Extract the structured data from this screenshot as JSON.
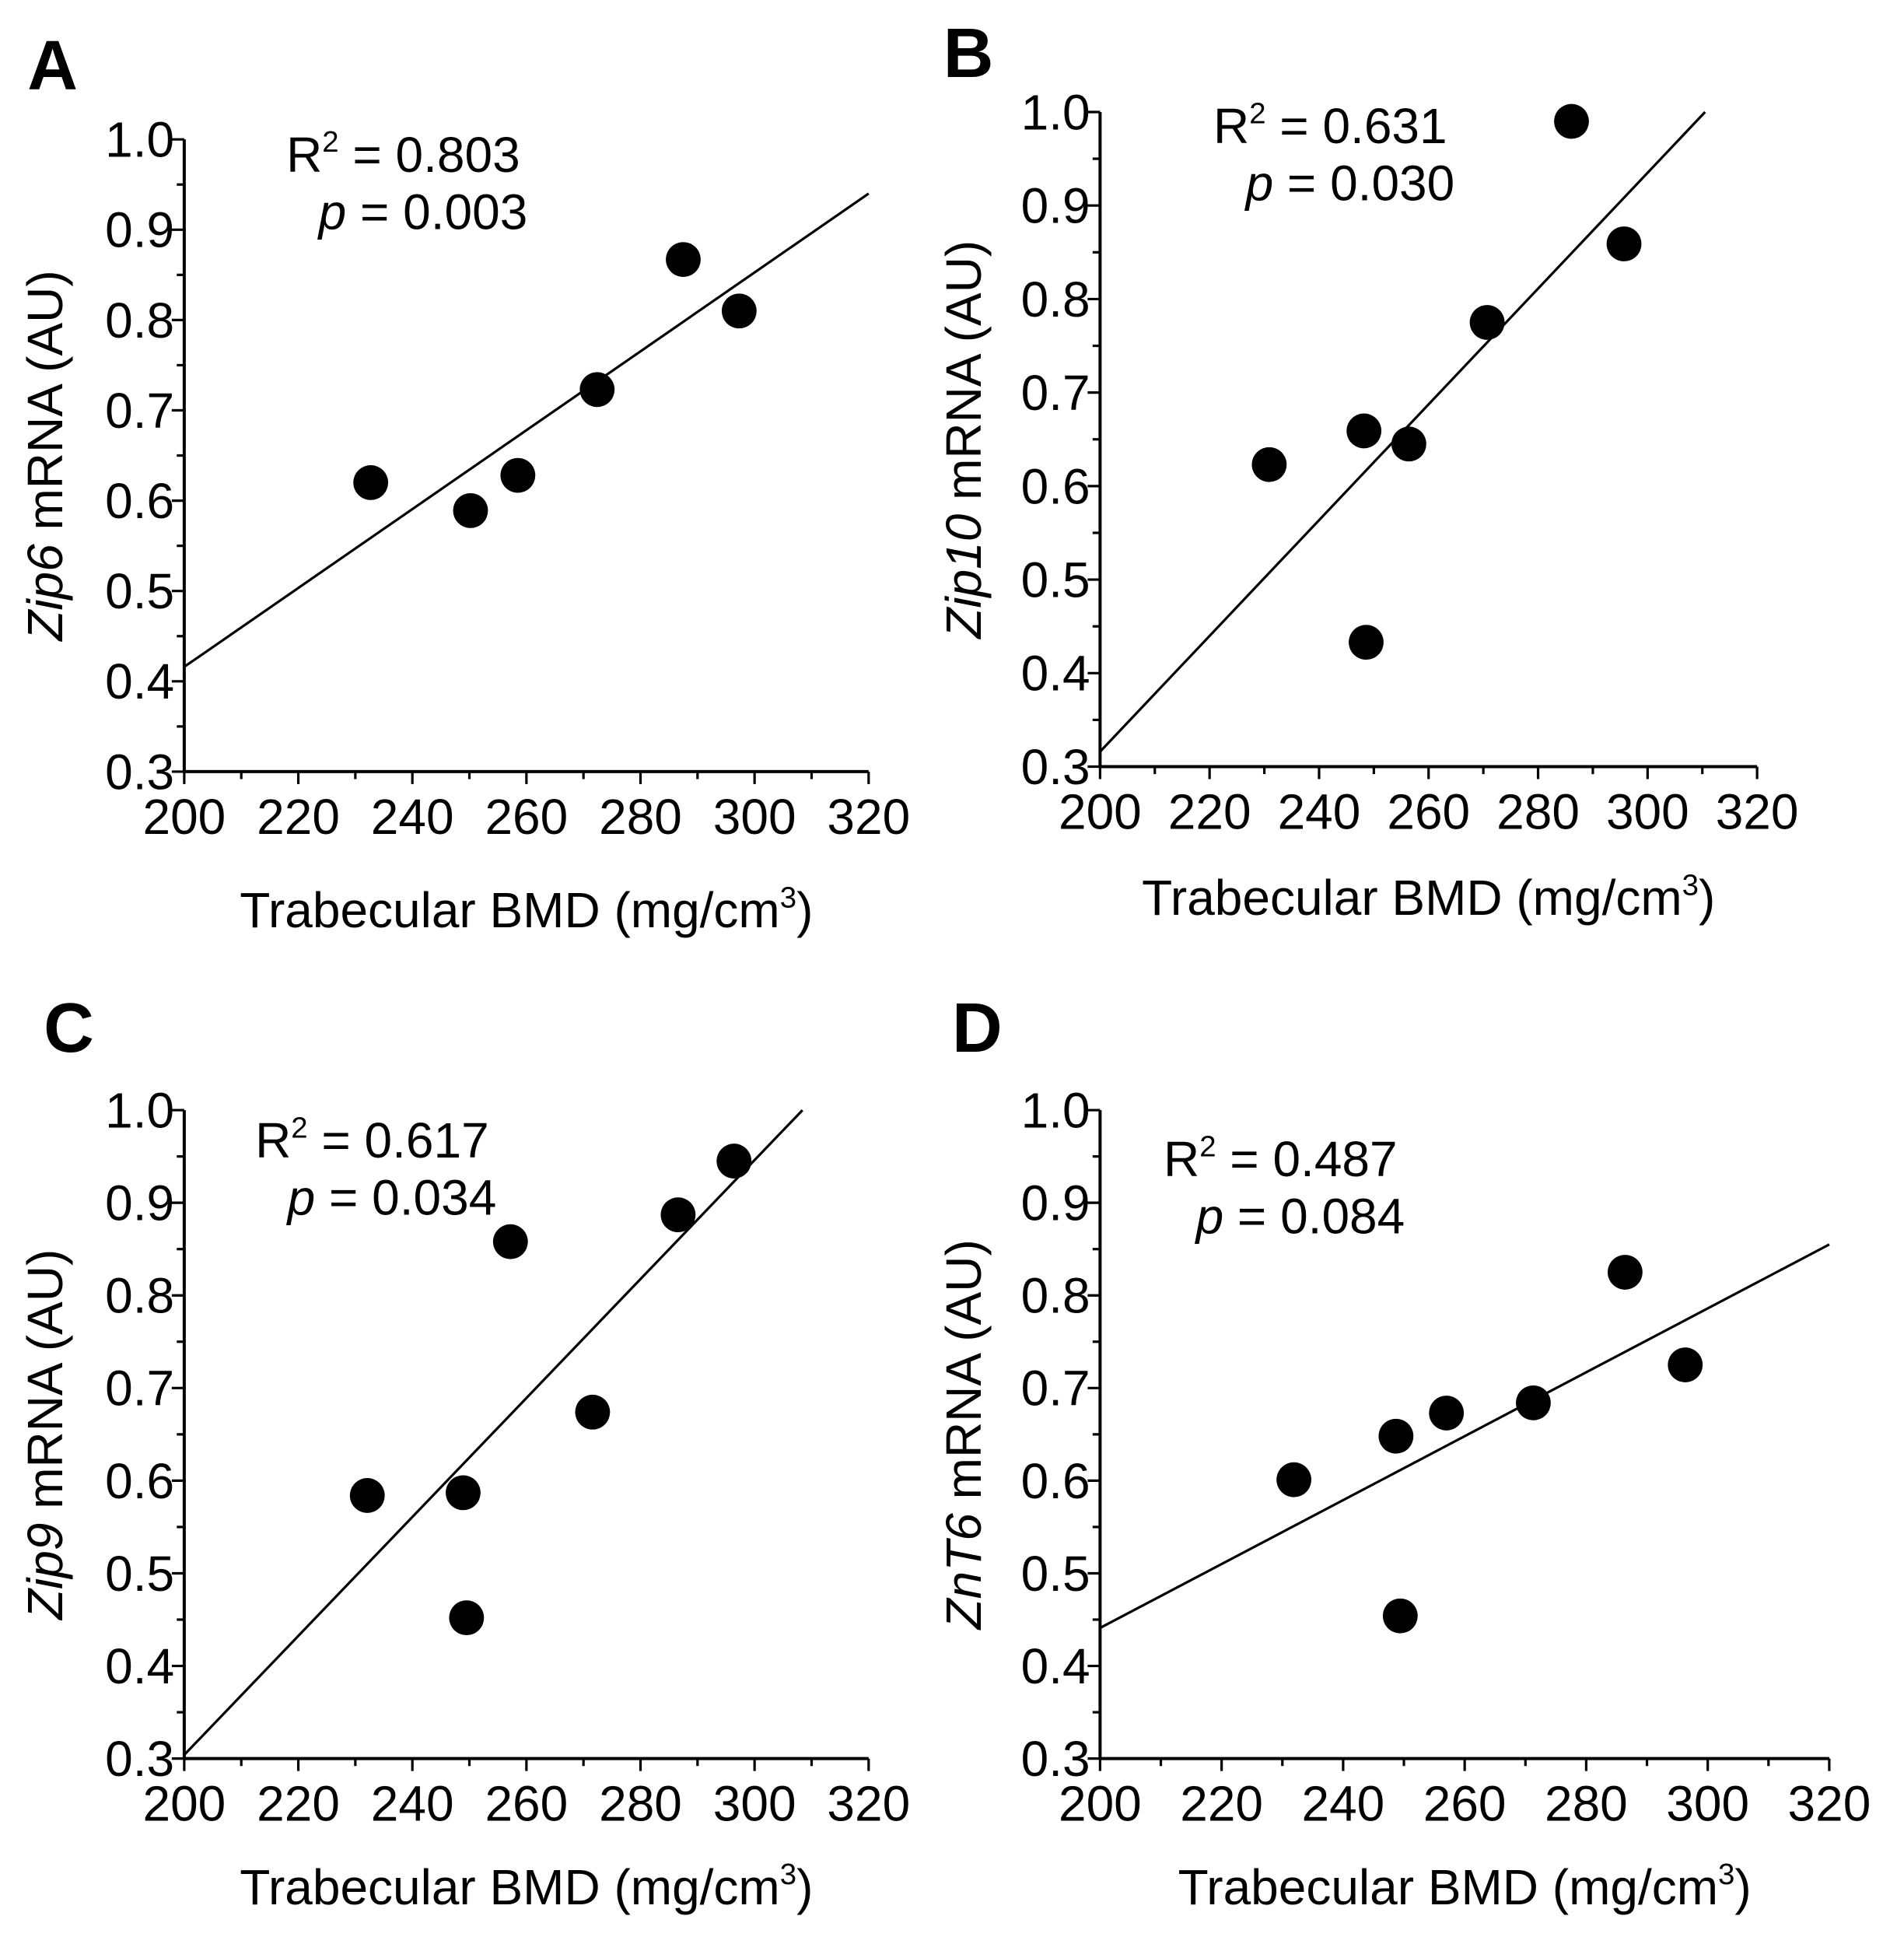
{
  "chart_data": [
    {
      "type": "scatter",
      "panel": "A",
      "ylabel_gene": "Zip6",
      "ylabel_rest": " mRNA (AU)",
      "xlabel_main": "Trabecular BMD (mg/cm",
      "xlabel_sup": "3",
      "xlabel_end": ")",
      "r2_label": "R",
      "r2_sup": "2",
      "r2_value": " = 0.803",
      "p_label": "p",
      "p_value": " = 0.003",
      "xlim": [
        200,
        320
      ],
      "ylim": [
        0.3,
        1.0
      ],
      "xticks": [
        "200",
        "220",
        "240",
        "260",
        "280",
        "300",
        "320"
      ],
      "yticks": [
        "0.3",
        "0.4",
        "0.5",
        "0.6",
        "0.7",
        "0.8",
        "0.9",
        "1.0"
      ],
      "x": [
        232.7,
        250.2,
        258.5,
        272.4,
        287.5,
        297.3
      ],
      "y": [
        0.62,
        0.589,
        0.628,
        0.723,
        0.867,
        0.81
      ],
      "fit": {
        "x": [
          200,
          320
        ],
        "y": [
          0.416,
          0.94
        ]
      }
    },
    {
      "type": "scatter",
      "panel": "B",
      "ylabel_gene": "Zip10",
      "ylabel_rest": " mRNA (AU)",
      "xlabel_main": "Trabecular BMD (mg/cm",
      "xlabel_sup": "3",
      "xlabel_end": ")",
      "r2_label": "R",
      "r2_sup": "2",
      "r2_value": " = 0.631",
      "p_label": "p",
      "p_value": " = 0.030",
      "xlim": [
        200,
        320
      ],
      "ylim": [
        0.3,
        1.0
      ],
      "xticks": [
        "200",
        "220",
        "240",
        "260",
        "280",
        "300",
        "320"
      ],
      "yticks": [
        "0.3",
        "0.4",
        "0.5",
        "0.6",
        "0.7",
        "0.8",
        "0.9",
        "1.0"
      ],
      "x": [
        230.9,
        248.2,
        256.4,
        248.6,
        270.7,
        286.1,
        295.7
      ],
      "y": [
        0.623,
        0.659,
        0.645,
        0.433,
        0.775,
        0.99,
        0.859
      ],
      "fit": {
        "x": [
          200,
          310.5
        ],
        "y": [
          0.316,
          1.0
        ]
      }
    },
    {
      "type": "scatter",
      "panel": "C",
      "ylabel_gene": "Zip9",
      "ylabel_rest": " mRNA (AU)",
      "xlabel_main": "Trabecular BMD (mg/cm",
      "xlabel_sup": "3",
      "xlabel_end": ")",
      "r2_label": "R",
      "r2_sup": "2",
      "r2_value": " = 0.617",
      "p_label": "p",
      "p_value": " = 0.034",
      "xlim": [
        200,
        320
      ],
      "ylim": [
        0.3,
        1.0
      ],
      "xticks": [
        "200",
        "220",
        "240",
        "260",
        "280",
        "300",
        "320"
      ],
      "yticks": [
        "0.3",
        "0.4",
        "0.5",
        "0.6",
        "0.7",
        "0.8",
        "0.9",
        "1.0"
      ],
      "x": [
        232.1,
        248.9,
        249.5,
        257.2,
        271.6,
        286.6,
        296.4
      ],
      "y": [
        0.584,
        0.587,
        0.452,
        0.858,
        0.674,
        0.887,
        0.945
      ],
      "fit": {
        "x": [
          200,
          308.4
        ],
        "y": [
          0.304,
          1.0
        ]
      }
    },
    {
      "type": "scatter",
      "panel": "D",
      "ylabel_gene": "ZnT6",
      "ylabel_rest": " mRNA (AU)",
      "xlabel_main": "Trabecular BMD (mg/cm",
      "xlabel_sup": "3",
      "xlabel_end": ")",
      "r2_label": "R",
      "r2_sup": "2",
      "r2_value": " = 0.487",
      "p_label": "p",
      "p_value": " = 0.084",
      "xlim": [
        200,
        320
      ],
      "ylim": [
        0.3,
        1.0
      ],
      "xticks": [
        "200",
        "220",
        "240",
        "260",
        "280",
        "300",
        "320"
      ],
      "yticks": [
        "0.3",
        "0.4",
        "0.5",
        "0.6",
        "0.7",
        "0.8",
        "0.9",
        "1.0"
      ],
      "x": [
        231.9,
        248.7,
        257.0,
        249.4,
        271.3,
        286.4,
        296.3
      ],
      "y": [
        0.601,
        0.648,
        0.673,
        0.454,
        0.684,
        0.825,
        0.725
      ],
      "fit": {
        "x": [
          200,
          320
        ],
        "y": [
          0.441,
          0.855
        ]
      }
    }
  ]
}
